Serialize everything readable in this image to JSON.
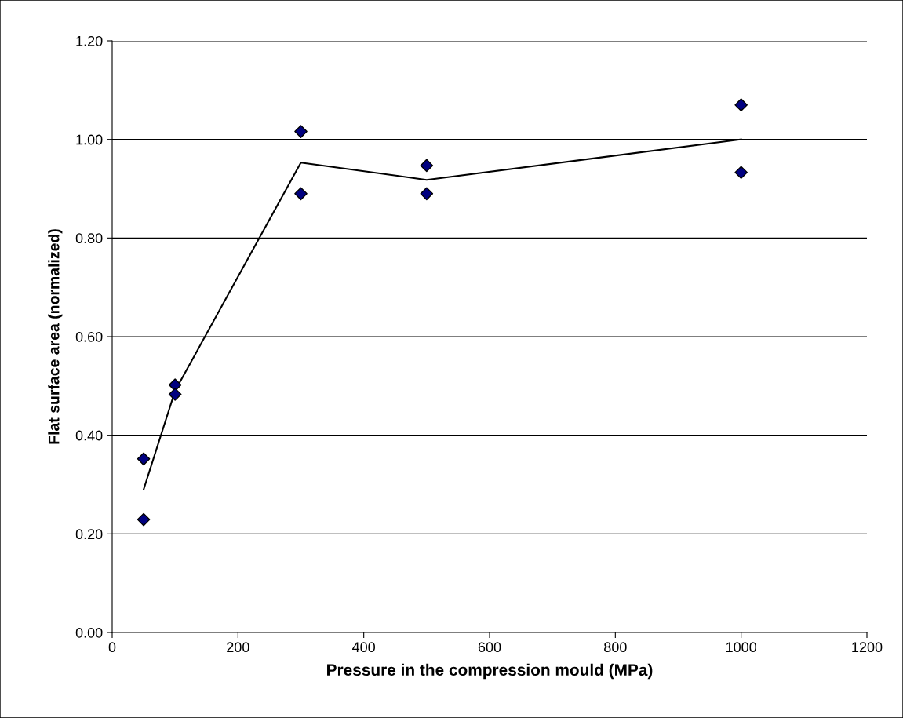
{
  "chart_data": {
    "type": "scatter",
    "xlabel": "Pressure in the compression mould (MPa)",
    "ylabel": "Flat surface area (normalized)",
    "series": [
      {
        "color": "#000080",
        "marker": "diamond",
        "x": [
          50,
          50,
          100,
          100,
          300,
          300,
          500,
          500,
          1000,
          1000
        ],
        "values": [
          0.352,
          0.229,
          0.502,
          0.483,
          1.016,
          0.89,
          0.947,
          0.89,
          1.07,
          0.933
        ]
      },
      {
        "type": "line",
        "color": "#000000",
        "marker": "none",
        "x": [
          50,
          100,
          300,
          500,
          1000
        ],
        "values": [
          0.29,
          0.49,
          0.953,
          0.918,
          1.0
        ]
      }
    ],
    "xlim": [
      0,
      1200
    ],
    "xticks": [
      0,
      200,
      400,
      600,
      800,
      1000,
      1200
    ],
    "ylim": [
      0,
      1.2
    ],
    "yticks": [
      {
        "value": 0,
        "label": "0.00"
      },
      {
        "value": 0.2,
        "label": "0.20"
      },
      {
        "value": 0.4,
        "label": "0.40"
      },
      {
        "value": 0.6,
        "label": "0.60"
      },
      {
        "value": 0.8,
        "label": "0.80"
      },
      {
        "value": 1.0,
        "label": "1.00"
      },
      {
        "value": 1.2,
        "label": "1.20"
      }
    ],
    "grid": "y"
  }
}
